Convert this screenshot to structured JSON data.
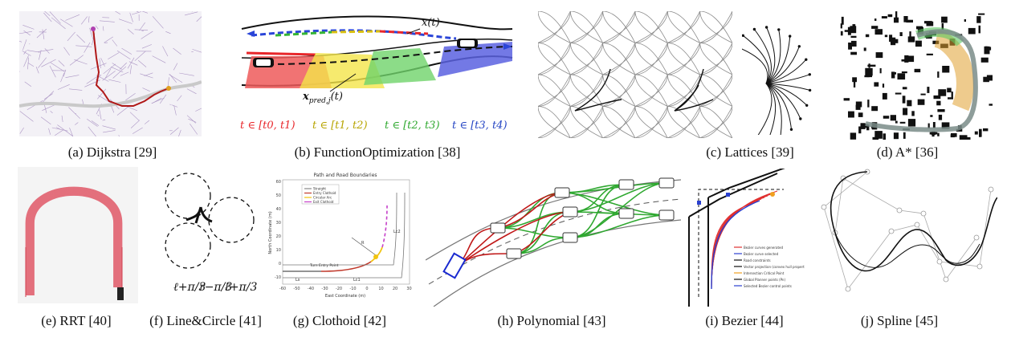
{
  "captions": {
    "a": "(a) Dijkstra [29]",
    "b": "(b) FunctionOptimization [38]",
    "c": "(c) Lattices [39]",
    "d": "(d) A* [36]",
    "e": "(e) RRT [40]",
    "f": "(f) Line&Circle [41]",
    "g": "(g) Clothoid [42]",
    "h": "(h) Polynomial [43]",
    "i": "(i) Bezier [44]",
    "j": "(j) Spline [45]"
  },
  "panel_b": {
    "x_label": "x(t)",
    "xpred_label": "x",
    "xpred_sub": "pred,j",
    "xpred_arg": "(t)",
    "intervals": [
      {
        "text": "t ∈ [t0, t1)",
        "color": "#e8262a"
      },
      {
        "text": "t ∈ [t1, t2)",
        "color": "#b7a400"
      },
      {
        "text": "t ∈ [t2, t3)",
        "color": "#2ea82e"
      },
      {
        "text": "t ∈ [t3, t4)",
        "color": "#2545c4"
      }
    ]
  },
  "panel_f": {
    "labels": [
      "ℓ+π/3",
      "r−π/3",
      "ℓ+π/3"
    ]
  },
  "panel_g": {
    "title": "Path and Road Boundaries",
    "ylabel": "North Coordinate (m)",
    "xlabel": "East Coordinate (m)",
    "legend": [
      {
        "text": "Straight",
        "color": "#888888"
      },
      {
        "text": "Entry Clothoid",
        "color": "#c0392b"
      },
      {
        "text": "Circular Arc",
        "color": "#f1c40f"
      },
      {
        "text": "Exit Clothoid",
        "color": "#c53fc9"
      }
    ],
    "annotations": [
      "Turn Entry Point",
      "Ls",
      "Lc1",
      "Lc2",
      "R"
    ],
    "yticks": [
      "60",
      "50",
      "40",
      "30",
      "20",
      "10",
      "0",
      "-10"
    ],
    "xticks": [
      "-60",
      "-50",
      "-40",
      "-30",
      "-20",
      "-10",
      "0",
      "10",
      "20",
      "30"
    ]
  },
  "panel_i": {
    "legend": [
      {
        "text": "Bezier curves generated",
        "color": "#e03030"
      },
      {
        "text": "Bezier curve selected",
        "color": "#2a40d0"
      },
      {
        "text": "Road constraints",
        "color": "#111111"
      },
      {
        "text": "Vector projection (convex hull property)",
        "color": "#111111"
      },
      {
        "text": "Intersection Critical Point",
        "color": "#f0a020"
      },
      {
        "text": "Global Planner points (Pn)",
        "color": "#111111"
      },
      {
        "text": "Selected Bezier control points",
        "color": "#2a40d0"
      }
    ]
  }
}
